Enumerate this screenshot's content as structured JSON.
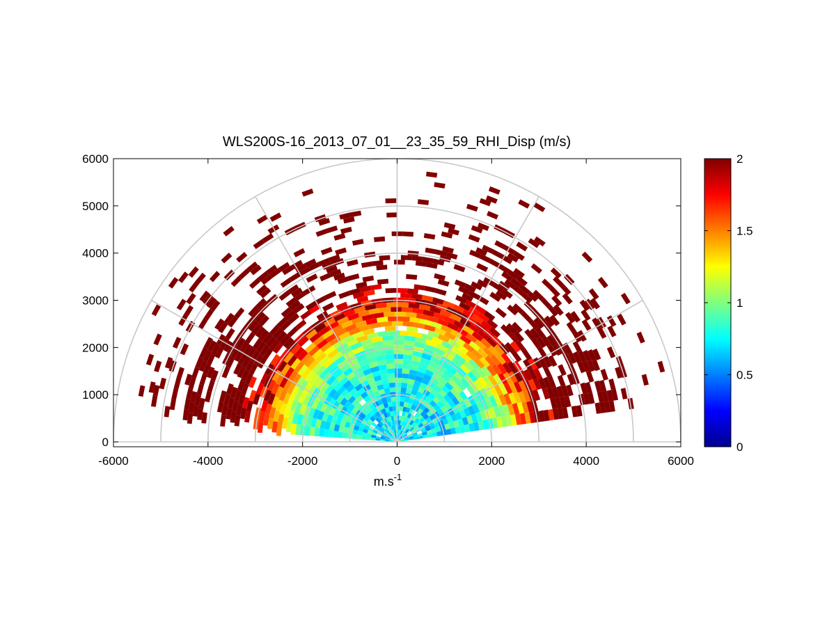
{
  "chart_data": {
    "type": "heatmap",
    "subtype": "polar-rhi-sector",
    "title": "WLS200S-16_2013_07_01__23_35_59_RHI_Disp (m/s)",
    "xlabel": "m.s",
    "xlabel_superscript": "-1",
    "ylabel": "",
    "xlim": [
      -6000,
      6000
    ],
    "ylim": [
      0,
      6000
    ],
    "xticks": [
      -6000,
      -4000,
      -2000,
      0,
      2000,
      4000,
      6000
    ],
    "yticks": [
      0,
      1000,
      2000,
      3000,
      4000,
      5000,
      6000
    ],
    "xtick_labels": [
      "-6000",
      "-4000",
      "-2000",
      "0",
      "2000",
      "4000",
      "6000"
    ],
    "ytick_labels": [
      "0",
      "1000",
      "2000",
      "3000",
      "4000",
      "5000",
      "6000"
    ],
    "polar_grid": {
      "range_rings": [
        1000,
        2000,
        3000,
        4000,
        5000,
        6000
      ],
      "spokes_deg": [
        0,
        30,
        60,
        90,
        120,
        150,
        180
      ]
    },
    "colorbar": {
      "colormap": "jet",
      "min": 0,
      "max": 2,
      "ticks": [
        0,
        0.5,
        1,
        1.5,
        2
      ],
      "tick_labels": [
        "0",
        "0.5",
        "1",
        "1.5",
        "2"
      ]
    },
    "field": {
      "description_units": "m/s",
      "elevation_range_deg": [
        8,
        172
      ],
      "range_max_m": 5800,
      "profile": [
        {
          "range_m": 0,
          "value": 0.7
        },
        {
          "range_m": 1000,
          "value": 0.75
        },
        {
          "range_m": 1800,
          "value": 0.85
        },
        {
          "range_m": 2200,
          "value": 1.1
        },
        {
          "range_m": 2600,
          "value": 1.5
        },
        {
          "range_m": 3000,
          "value": 1.9
        },
        {
          "range_m": 3500,
          "value": 2.0
        },
        {
          "range_m": 5800,
          "value": 2.0
        }
      ]
    },
    "grid": false,
    "legend": "none"
  }
}
